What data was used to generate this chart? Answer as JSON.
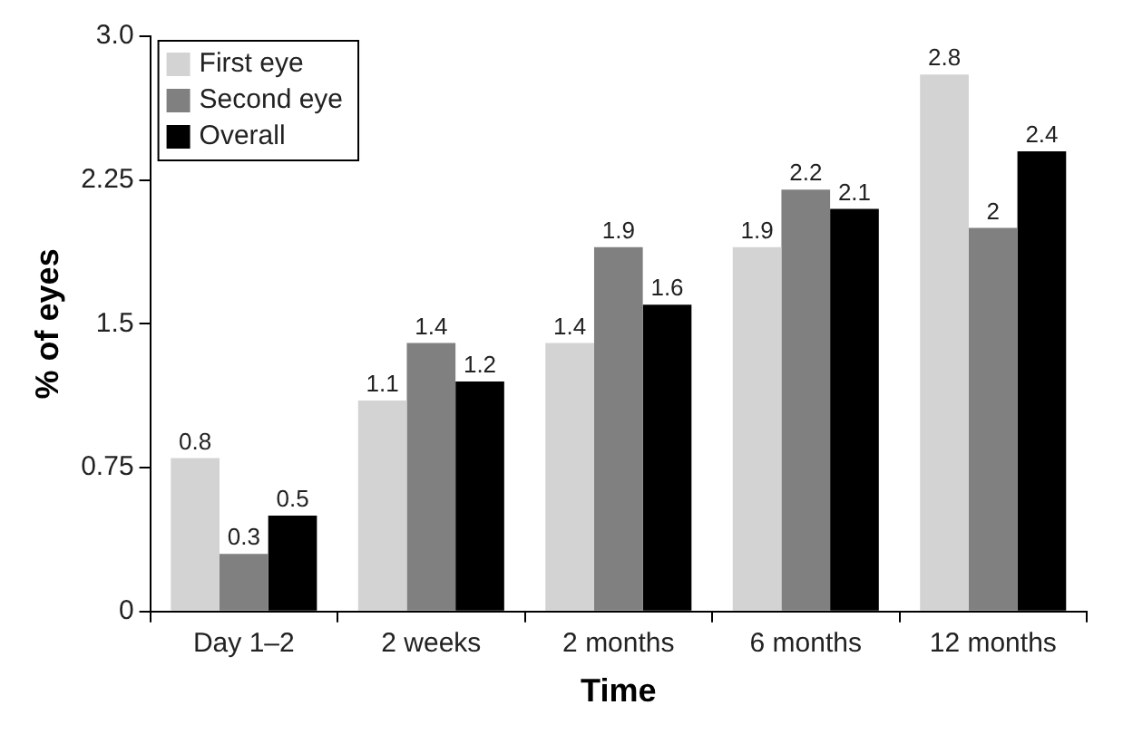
{
  "chart_data": {
    "type": "bar",
    "xlabel": "Time",
    "ylabel": "% of eyes",
    "categories": [
      "Day 1–2",
      "2 weeks",
      "2 months",
      "6 months",
      "12 months"
    ],
    "series": [
      {
        "name": "First eye",
        "color": "#d3d3d3",
        "values": [
          0.8,
          1.1,
          1.4,
          1.9,
          2.8
        ]
      },
      {
        "name": "Second eye",
        "color": "#808080",
        "values": [
          0.3,
          1.4,
          1.9,
          2.2,
          2
        ]
      },
      {
        "name": "Overall",
        "color": "#000000",
        "values": [
          0.5,
          1.2,
          1.6,
          2.1,
          2.4
        ]
      }
    ],
    "ylim": [
      0,
      3
    ],
    "yticks": [
      0,
      0.75,
      1.5,
      2.25,
      {
        "value": 3,
        "label": "3.0"
      }
    ],
    "grid": false,
    "legend": "top left",
    "data_labels": true
  }
}
